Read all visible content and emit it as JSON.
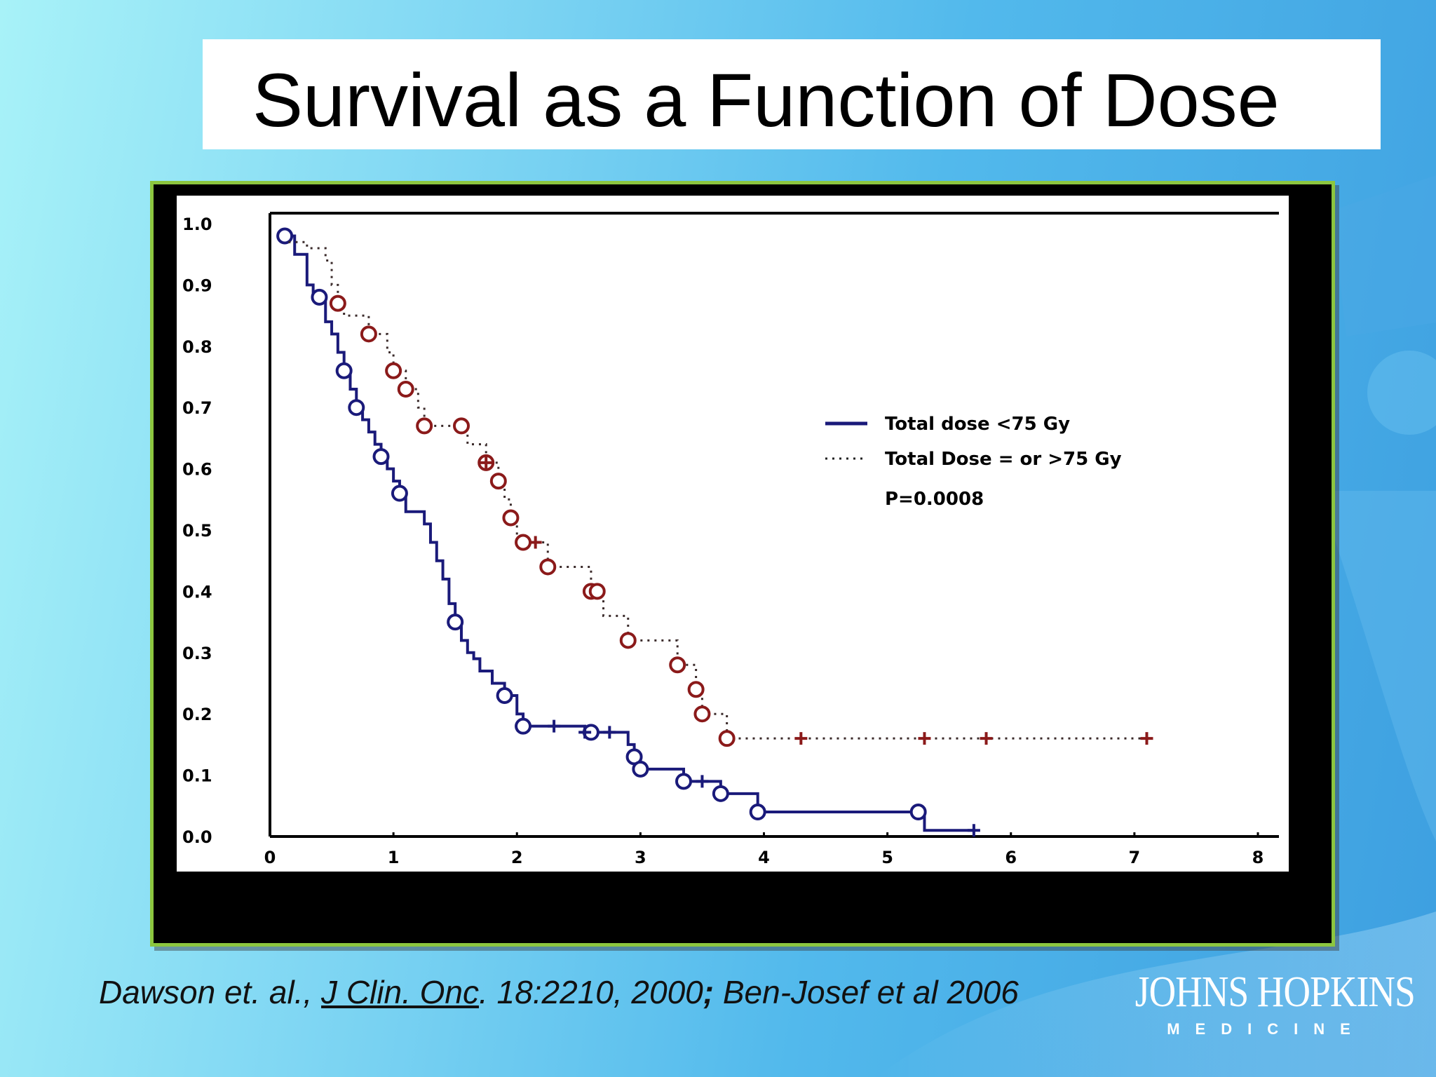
{
  "slide": {
    "title": "Survival as a Function of Dose",
    "citation": {
      "part1": "Dawson et. al., ",
      "journal": "J Clin. Onc",
      "part2": ". 18:2210, 2000",
      "separator": ";",
      "part3": " Ben-Josef et al 2006"
    },
    "logo": {
      "name": "JOHNS HOPKINS",
      "sub": "MEDICINE"
    },
    "colors": {
      "frame_border": "#8cc63f",
      "series_low": "#1a1a7a",
      "series_high": "#8b1a1a"
    }
  },
  "chart_data": {
    "type": "line",
    "subtype": "kaplan-meier step",
    "xlim": [
      0,
      8
    ],
    "ylim": [
      0,
      1.0
    ],
    "x_ticks": [
      "0",
      "1",
      "2",
      "3",
      "4",
      "5",
      "6",
      "7",
      "8"
    ],
    "y_ticks": [
      "1.0",
      "0.9",
      "0.8",
      "0.7",
      "0.6",
      "0.5",
      "0.4",
      "0.3",
      "0.2",
      "0.1",
      "0.0"
    ],
    "legend_position": "upper-right",
    "annotation": "P=0.0008",
    "series": [
      {
        "name": "Total dose <75 Gy",
        "style": "solid",
        "color": "#1a1a7a",
        "steps": [
          [
            0.1,
            0.98
          ],
          [
            0.2,
            0.95
          ],
          [
            0.3,
            0.9
          ],
          [
            0.35,
            0.88
          ],
          [
            0.45,
            0.84
          ],
          [
            0.5,
            0.82
          ],
          [
            0.55,
            0.79
          ],
          [
            0.6,
            0.76
          ],
          [
            0.65,
            0.73
          ],
          [
            0.7,
            0.7
          ],
          [
            0.75,
            0.68
          ],
          [
            0.8,
            0.66
          ],
          [
            0.85,
            0.64
          ],
          [
            0.9,
            0.62
          ],
          [
            0.95,
            0.6
          ],
          [
            1.0,
            0.58
          ],
          [
            1.05,
            0.56
          ],
          [
            1.1,
            0.53
          ],
          [
            1.2,
            0.53
          ],
          [
            1.25,
            0.51
          ],
          [
            1.3,
            0.48
          ],
          [
            1.35,
            0.45
          ],
          [
            1.4,
            0.42
          ],
          [
            1.45,
            0.38
          ],
          [
            1.5,
            0.35
          ],
          [
            1.55,
            0.32
          ],
          [
            1.6,
            0.3
          ],
          [
            1.65,
            0.29
          ],
          [
            1.7,
            0.27
          ],
          [
            1.8,
            0.25
          ],
          [
            1.9,
            0.23
          ],
          [
            2.0,
            0.2
          ],
          [
            2.05,
            0.18
          ],
          [
            2.55,
            0.17
          ],
          [
            2.9,
            0.15
          ],
          [
            2.95,
            0.13
          ],
          [
            3.0,
            0.11
          ],
          [
            3.35,
            0.09
          ],
          [
            3.65,
            0.07
          ],
          [
            3.95,
            0.04
          ],
          [
            5.3,
            0.01
          ],
          [
            5.7,
            0.01
          ]
        ],
        "markers_open": [
          0.12,
          0.4,
          0.6,
          0.7,
          0.9,
          1.05,
          1.5,
          1.9,
          2.05,
          2.6,
          2.95,
          3.0,
          3.35,
          3.65,
          3.95,
          5.25
        ],
        "markers_censor": [
          2.3,
          2.55,
          2.75,
          3.5,
          5.7
        ]
      },
      {
        "name": "Total Dose = or >75 Gy",
        "style": "dotted",
        "color": "#8b1a1a",
        "steps": [
          [
            0.15,
            0.97
          ],
          [
            0.3,
            0.96
          ],
          [
            0.45,
            0.94
          ],
          [
            0.5,
            0.9
          ],
          [
            0.55,
            0.87
          ],
          [
            0.6,
            0.85
          ],
          [
            0.8,
            0.82
          ],
          [
            0.95,
            0.79
          ],
          [
            1.0,
            0.76
          ],
          [
            1.1,
            0.73
          ],
          [
            1.2,
            0.7
          ],
          [
            1.25,
            0.67
          ],
          [
            1.6,
            0.64
          ],
          [
            1.75,
            0.61
          ],
          [
            1.85,
            0.58
          ],
          [
            1.9,
            0.55
          ],
          [
            1.95,
            0.52
          ],
          [
            2.0,
            0.48
          ],
          [
            2.25,
            0.44
          ],
          [
            2.6,
            0.4
          ],
          [
            2.7,
            0.36
          ],
          [
            2.9,
            0.32
          ],
          [
            3.3,
            0.28
          ],
          [
            3.45,
            0.24
          ],
          [
            3.5,
            0.2
          ],
          [
            3.7,
            0.16
          ],
          [
            7.1,
            0.16
          ]
        ],
        "markers_open": [
          0.55,
          0.8,
          1.0,
          1.1,
          1.25,
          1.55,
          1.75,
          1.85,
          1.95,
          2.05,
          2.25,
          2.6,
          2.65,
          2.9,
          3.3,
          3.45,
          3.5,
          3.7
        ],
        "markers_censor": [
          1.75,
          2.15,
          4.3,
          5.3,
          5.8,
          7.1
        ]
      }
    ]
  }
}
